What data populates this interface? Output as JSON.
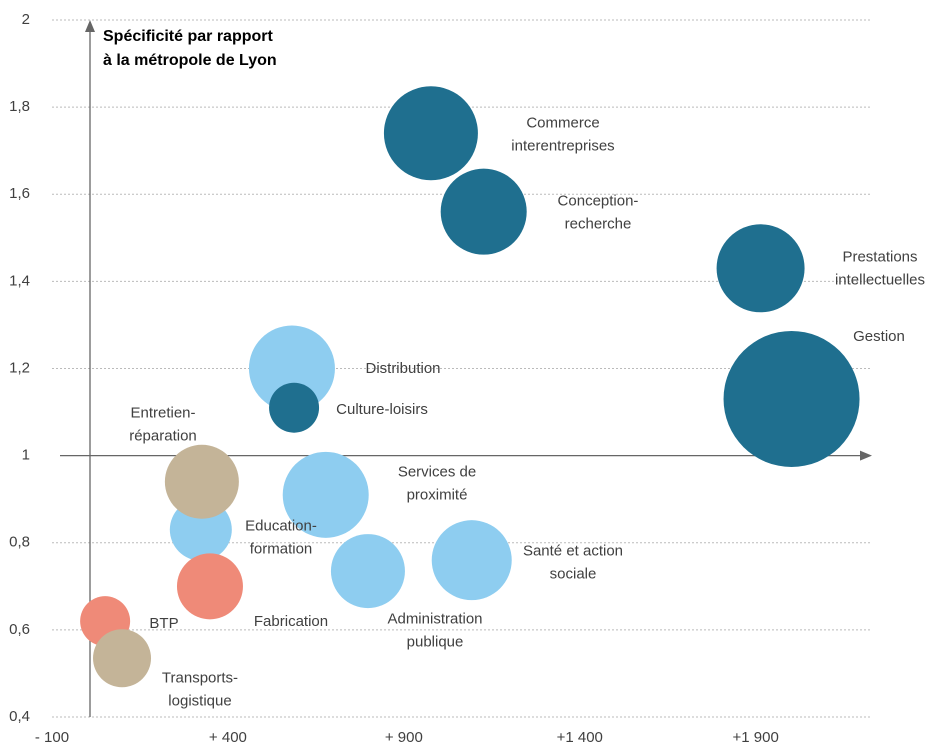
{
  "chart_data": {
    "type": "bubble",
    "title": "Spécificité par rapport\nà la métropole de Lyon",
    "points": [
      {
        "label": "Commerce\ninterentreprises",
        "x": 977,
        "y": 1.74,
        "size": 2209,
        "color": "#1f6f8f"
      },
      {
        "label": "Conception-\nrecherche",
        "x": 1127,
        "y": 1.56,
        "size": 1849,
        "color": "#1f6f8f"
      },
      {
        "label": "Prestations\nintellectuelles",
        "x": 1914,
        "y": 1.43,
        "size": 1936,
        "color": "#1f6f8f"
      },
      {
        "label": "Gestion",
        "x": 2002,
        "y": 1.13,
        "size": 4624,
        "color": "#1f6f8f"
      },
      {
        "label": "Distribution",
        "x": 582,
        "y": 1.2,
        "size": 1849,
        "color": "#8ecdf0"
      },
      {
        "label": "Culture-loisirs",
        "x": 588,
        "y": 1.11,
        "size": 625,
        "color": "#1f6f8f"
      },
      {
        "label": "Education-\nformation",
        "x": 323,
        "y": 0.83,
        "size": 961,
        "color": "#8ecdf0"
      },
      {
        "label": "Entretien-\nréparation",
        "x": 326,
        "y": 0.94,
        "size": 1369,
        "color": "#c4b498"
      },
      {
        "label": "Services de\nproximité",
        "x": 678,
        "y": 0.91,
        "size": 1849,
        "color": "#8ecdf0"
      },
      {
        "label": "Santé et action\nsociale",
        "x": 1093,
        "y": 0.76,
        "size": 1600,
        "color": "#8ecdf0"
      },
      {
        "label": "Administration\npublique",
        "x": 798,
        "y": 0.735,
        "size": 1369,
        "color": "#8ecdf0"
      },
      {
        "label": "Fabrication",
        "x": 349,
        "y": 0.7,
        "size": 1089,
        "color": "#ef8a78"
      },
      {
        "label": "BTP",
        "x": 51,
        "y": 0.62,
        "size": 625,
        "color": "#ef8a78"
      },
      {
        "label": "Transports-\nlogistique",
        "x": 99,
        "y": 0.535,
        "size": 841,
        "color": "#c4b498"
      }
    ],
    "xlim": [
      -100,
      2225
    ],
    "xticks": [
      {
        "value": -100,
        "label": "- 100"
      },
      {
        "value": 400,
        "label": "+ 400"
      },
      {
        "value": 900,
        "label": "+ 900"
      },
      {
        "value": 1400,
        "label": "+1 400"
      },
      {
        "value": 1900,
        "label": "+1 900"
      }
    ],
    "ylim": [
      0.4,
      2
    ],
    "yticks": [
      {
        "value": 0.4,
        "label": "0,4"
      },
      {
        "value": 0.6,
        "label": "0,6"
      },
      {
        "value": 0.8,
        "label": "0,8"
      },
      1,
      {
        "value": 1.2,
        "label": "1,2"
      },
      {
        "value": 1.4,
        "label": "1,4"
      },
      {
        "value": 1.6,
        "label": "1,6"
      },
      {
        "value": 1.8,
        "label": "1,8"
      },
      2
    ],
    "grid": true
  }
}
